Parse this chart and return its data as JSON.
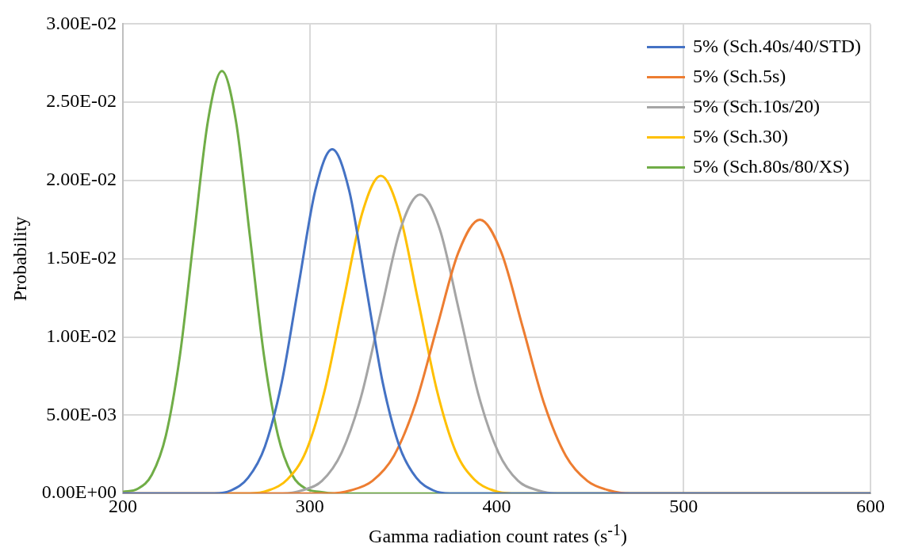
{
  "chart_data": {
    "type": "line",
    "xlabel": "Gamma radiation count rates (s$^{-1}$)",
    "ylabel": "Probability",
    "xlim": [
      200,
      600
    ],
    "xticks": [
      200,
      300,
      400,
      500,
      600
    ],
    "ylim": [
      0,
      0.03
    ],
    "yticks": [
      {
        "value": 0,
        "label": "0.00E+00"
      },
      {
        "value": 0.005,
        "label": "5.00E-03"
      },
      {
        "value": 0.01,
        "label": "1.00E-02"
      },
      {
        "value": 0.015,
        "label": "1.50E-02"
      },
      {
        "value": 0.02,
        "label": "2.00E-02"
      },
      {
        "value": 0.025,
        "label": "2.50E-02"
      },
      {
        "value": 0.03,
        "label": "3.00E-02"
      }
    ],
    "grid": true,
    "legend": "top right",
    "marker": "none",
    "line_style": "solid",
    "series": [
      {
        "name": "5% (Sch.40s/40/STD)",
        "color": "#4472c4",
        "x": [
          200,
          240,
          249,
          258,
          267,
          276,
          285,
          294,
          303,
          312,
          321,
          330,
          339,
          348,
          357,
          366,
          375,
          384,
          600
        ],
        "values": [
          0,
          0,
          0,
          0.0002,
          0.001,
          0.003,
          0.0071,
          0.0133,
          0.0194,
          0.022,
          0.0194,
          0.0133,
          0.0071,
          0.003,
          0.001,
          0.0002,
          0,
          0,
          0
        ]
      },
      {
        "name": "5% (Sch.5s)",
        "color": "#ed7d31",
        "x": [
          200,
          299,
          310.5,
          322,
          333.5,
          345,
          356.5,
          368,
          379.5,
          391,
          402.5,
          414,
          425.5,
          437,
          448.5,
          460,
          471.5,
          483,
          600
        ],
        "values": [
          0,
          0,
          0,
          0.0002,
          0.0008,
          0.0024,
          0.0057,
          0.0106,
          0.0154,
          0.0175,
          0.0154,
          0.0106,
          0.0057,
          0.0024,
          0.0008,
          0.0002,
          0,
          0,
          0
        ]
      },
      {
        "name": "5% (Sch.10s/20)",
        "color": "#a5a5a5",
        "x": [
          200,
          275,
          285.5,
          296,
          306.5,
          317,
          327.5,
          338,
          348.5,
          359,
          369.5,
          380,
          390.5,
          401,
          411.5,
          422,
          432.5,
          443,
          600
        ],
        "values": [
          0,
          0,
          0,
          0.0002,
          0.0008,
          0.0026,
          0.0062,
          0.0116,
          0.0169,
          0.0191,
          0.0169,
          0.0116,
          0.0062,
          0.0026,
          0.0008,
          0.0002,
          0,
          0,
          0
        ]
      },
      {
        "name": "5% (Sch.30)",
        "color": "#ffc000",
        "x": [
          200,
          258,
          268,
          278,
          288,
          298,
          308,
          318,
          328,
          338,
          348,
          358,
          368,
          378,
          388,
          398,
          408,
          418,
          600
        ],
        "values": [
          0,
          0,
          0,
          0.0002,
          0.0009,
          0.0027,
          0.0066,
          0.0123,
          0.0179,
          0.0203,
          0.0179,
          0.0123,
          0.0066,
          0.0027,
          0.0009,
          0.0002,
          0,
          0,
          0
        ]
      },
      {
        "name": "5% (Sch.80s/80/XS)",
        "color": "#70ad47",
        "x": [
          200,
          208,
          215.5,
          223,
          230.5,
          238,
          245.5,
          253,
          260.5,
          268,
          275.5,
          283,
          290.5,
          298,
          305.5,
          313,
          600
        ],
        "values": [
          0.0001,
          0.0003,
          0.0012,
          0.0037,
          0.0088,
          0.0164,
          0.0238,
          0.027,
          0.0238,
          0.0164,
          0.0088,
          0.0037,
          0.0012,
          0.0003,
          0.0001,
          0,
          0
        ]
      }
    ]
  }
}
